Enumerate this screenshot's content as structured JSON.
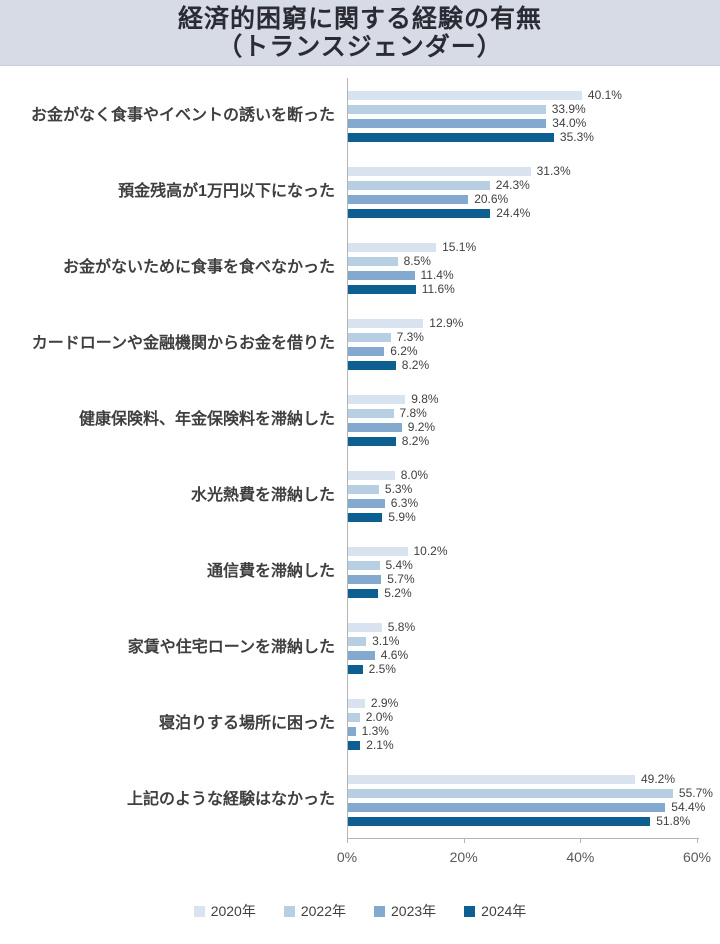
{
  "header": {
    "title_line1": "経済的困窮に関する経験の有無",
    "title_line2": "（トランスジェンダー）"
  },
  "chart_data": {
    "type": "bar",
    "orientation": "horizontal",
    "title": "経済的困窮に関する経験の有無（トランスジェンダー）",
    "categories": [
      "お金がなく食事やイベントの誘いを断った",
      "預金残高が1万円以下になった",
      "お金がないために食事を食べなかった",
      "カードローンや金融機関からお金を借りた",
      "健康保険料、年金保険料を滞納した",
      "水光熱費を滞納した",
      "通信費を滞納した",
      "家賃や住宅ローンを滞納した",
      "寝泊りする場所に困った",
      "上記のような経験はなかった"
    ],
    "series": [
      {
        "name": "2020年",
        "color": "#d9e3ef",
        "values": [
          40.1,
          31.3,
          15.1,
          12.9,
          9.8,
          8.0,
          10.2,
          5.8,
          2.9,
          49.2
        ]
      },
      {
        "name": "2022年",
        "color": "#b7cee3",
        "values": [
          33.9,
          24.3,
          8.5,
          7.3,
          7.8,
          5.3,
          5.4,
          3.1,
          2.0,
          55.7
        ]
      },
      {
        "name": "2023年",
        "color": "#84a9ce",
        "values": [
          34.0,
          20.6,
          11.4,
          6.2,
          9.2,
          6.3,
          5.7,
          4.6,
          1.3,
          54.4
        ]
      },
      {
        "name": "2024年",
        "color": "#0d5e91",
        "values": [
          35.3,
          24.4,
          11.6,
          8.2,
          8.2,
          5.9,
          5.2,
          2.5,
          2.1,
          51.8
        ]
      }
    ],
    "value_suffix": "%",
    "xlim": [
      0,
      60
    ],
    "x_tick_labels": [
      "0%",
      "20%",
      "40%",
      "60%"
    ],
    "grid": false,
    "legend_position": "bottom",
    "legend": [
      "2020年",
      "2022年",
      "2023年",
      "2024年"
    ]
  }
}
